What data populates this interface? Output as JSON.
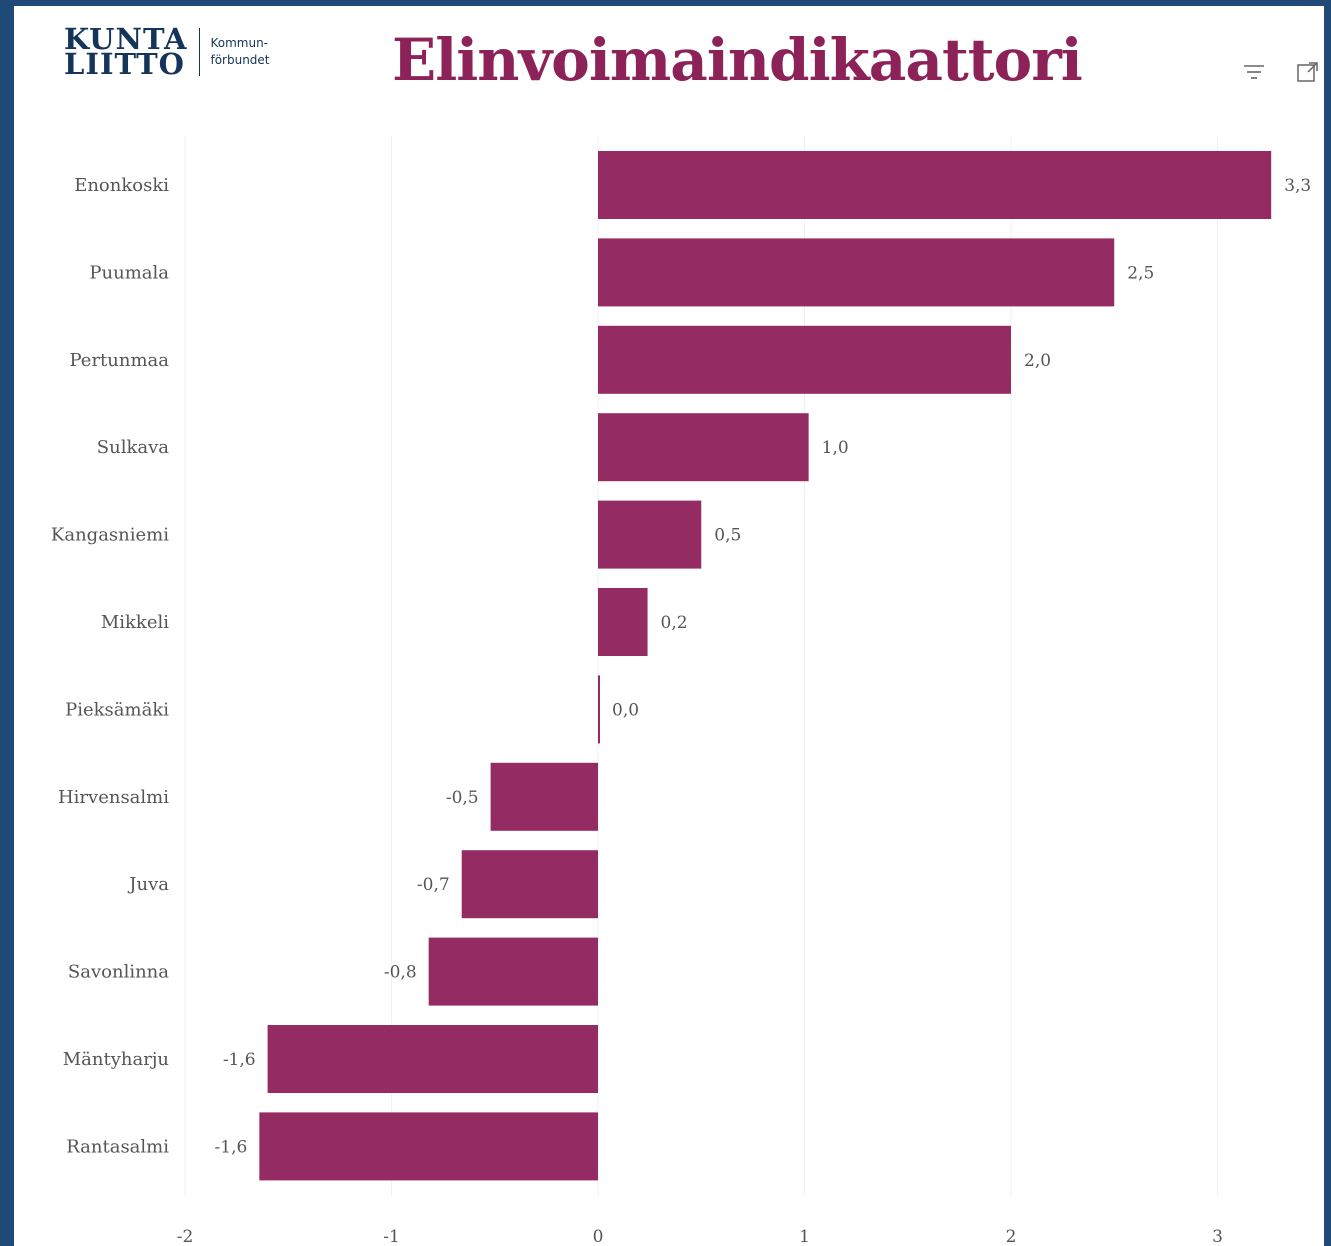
{
  "header": {
    "logo_line1": "KUNTA",
    "logo_line2": "LIITTO",
    "logo_sub1": "Kommun-",
    "logo_sub2": "förbundet",
    "title": "Elinvoimaindikaattori"
  },
  "toolbar": {
    "filter_icon": "filter-icon",
    "focus_icon": "focus-mode-icon"
  },
  "colors": {
    "bar": "#952b63",
    "title": "#8c2257",
    "frame": "#1f4a78",
    "logo": "#14345a"
  },
  "chart_data": {
    "type": "bar",
    "orientation": "horizontal",
    "categories": [
      "Enonkoski",
      "Puumala",
      "Pertunmaa",
      "Sulkava",
      "Kangasniemi",
      "Mikkeli",
      "Pieksämäki",
      "Hirvensalmi",
      "Juva",
      "Savonlinna",
      "Mäntyharju",
      "Rantasalmi"
    ],
    "values": [
      3.26,
      2.5,
      2.0,
      1.02,
      0.5,
      0.24,
      0.0,
      -0.52,
      -0.66,
      -0.82,
      -1.6,
      -1.64
    ],
    "data_labels": [
      "3,3",
      "2,5",
      "2,0",
      "1,0",
      "0,5",
      "0,2",
      "0,0",
      "-0,5",
      "-0,7",
      "-0,8",
      "-1,6",
      "-1,6"
    ],
    "xlim": [
      -2,
      3.3
    ],
    "x_ticks": [
      -2,
      -1,
      0,
      1,
      2,
      3
    ],
    "x_tick_labels": [
      "-2",
      "-1",
      "0",
      "1",
      "2",
      "3"
    ],
    "grid": true,
    "legend": "none"
  }
}
